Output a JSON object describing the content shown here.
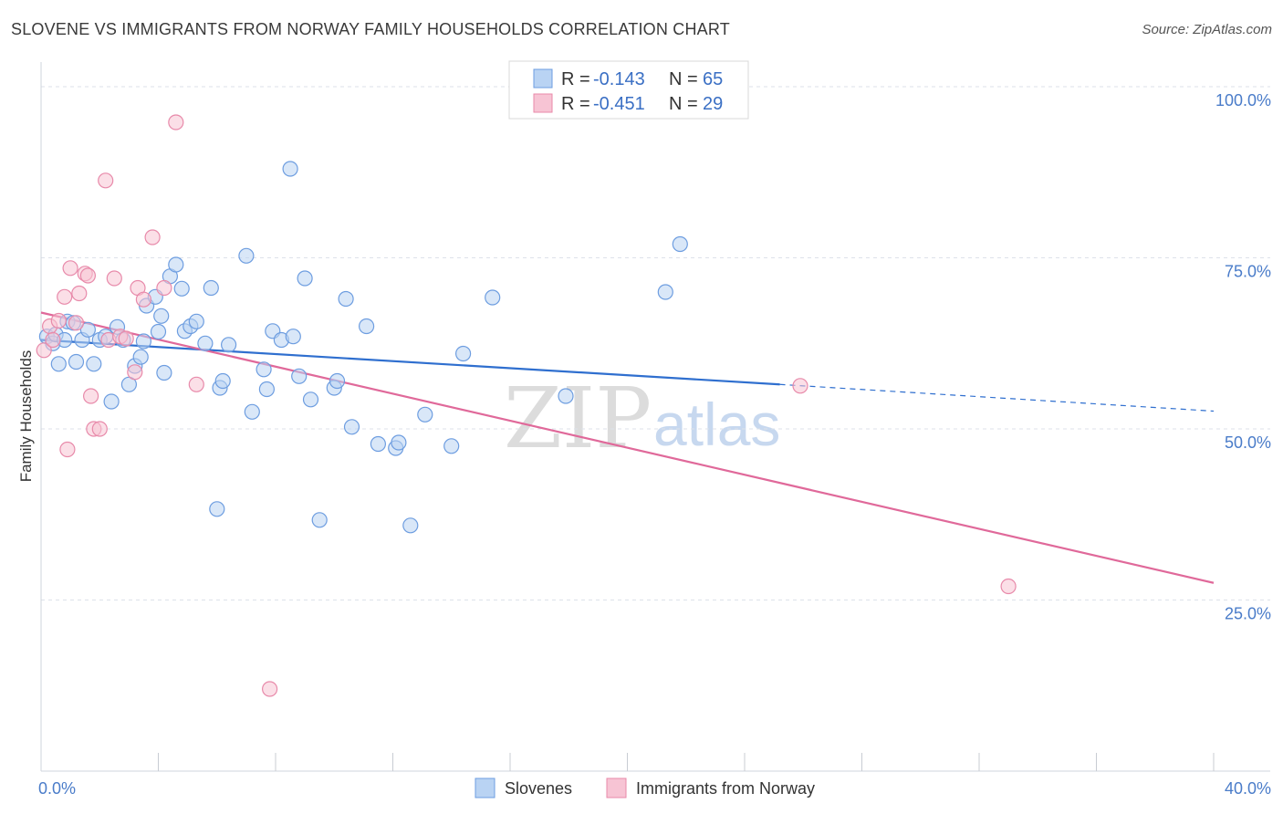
{
  "title": "SLOVENE VS IMMIGRANTS FROM NORWAY FAMILY HOUSEHOLDS CORRELATION CHART",
  "source": "Source: ZipAtlas.com",
  "watermark": {
    "zip": "ZIP",
    "atlas": "atlas"
  },
  "legend_top": {
    "rows": [
      {
        "r_label": "R =",
        "r_value": "-0.143",
        "n_label": "N =",
        "n_value": "65"
      },
      {
        "r_label": "R =",
        "r_value": "-0.451",
        "n_label": "N =",
        "n_value": "29"
      }
    ]
  },
  "legend_bottom": {
    "items": [
      {
        "label": "Slovenes"
      },
      {
        "label": "Immigrants from Norway"
      }
    ]
  },
  "colors": {
    "blue_fill": "#b9d3f3",
    "blue_stroke": "#6d9de0",
    "blue_line": "#2f6fcf",
    "pink_fill": "#f7c4d4",
    "pink_stroke": "#e88aaa",
    "pink_line": "#e0699a",
    "grid": "#dde2ea",
    "tick_label": "#4a7cc9"
  },
  "chart_data": {
    "type": "scatter",
    "xlabel": "",
    "ylabel": "Family Households",
    "xlim": [
      0,
      40
    ],
    "ylim": [
      0,
      104
    ],
    "x_tick_labels": [
      {
        "value": 0,
        "label": "0.0%"
      },
      {
        "value": 40,
        "label": "40.0%"
      }
    ],
    "x_minor_ticks": [
      4,
      8,
      12,
      16,
      20,
      24,
      28,
      32,
      36,
      40
    ],
    "y_ticks": [
      {
        "value": 25,
        "label": "25.0%"
      },
      {
        "value": 50,
        "label": "50.0%"
      },
      {
        "value": 75,
        "label": "75.0%"
      },
      {
        "value": 100,
        "label": "100.0%"
      }
    ],
    "grid": true,
    "legend_position": "top-center",
    "series": [
      {
        "name": "Slovenes",
        "color": "blue",
        "trend": {
          "x_start": 0,
          "y_start": 63.0,
          "x_end": 25.2,
          "y_end": 56.5,
          "dashed_to_x": 40,
          "dashed_to_y": 52.6
        },
        "points": [
          [
            0.2,
            63.5
          ],
          [
            0.4,
            62.5
          ],
          [
            0.5,
            63.8
          ],
          [
            0.6,
            59.5
          ],
          [
            0.8,
            63.0
          ],
          [
            0.9,
            65.7
          ],
          [
            1.1,
            65.5
          ],
          [
            1.2,
            59.8
          ],
          [
            1.4,
            63.0
          ],
          [
            1.6,
            64.5
          ],
          [
            1.8,
            59.5
          ],
          [
            2.0,
            63.0
          ],
          [
            2.2,
            63.5
          ],
          [
            2.4,
            54.0
          ],
          [
            2.6,
            64.9
          ],
          [
            2.8,
            63.0
          ],
          [
            3.0,
            56.5
          ],
          [
            3.2,
            59.2
          ],
          [
            3.4,
            60.5
          ],
          [
            3.5,
            62.8
          ],
          [
            3.6,
            68.0
          ],
          [
            3.9,
            69.3
          ],
          [
            4.0,
            64.2
          ],
          [
            4.1,
            66.5
          ],
          [
            4.2,
            58.2
          ],
          [
            4.4,
            72.3
          ],
          [
            4.6,
            74.0
          ],
          [
            4.8,
            70.5
          ],
          [
            4.9,
            64.3
          ],
          [
            5.1,
            65.0
          ],
          [
            5.3,
            65.7
          ],
          [
            5.6,
            62.5
          ],
          [
            5.8,
            70.6
          ],
          [
            6.0,
            38.3
          ],
          [
            6.1,
            56.0
          ],
          [
            6.2,
            57.0
          ],
          [
            6.4,
            62.3
          ],
          [
            7.0,
            75.3
          ],
          [
            7.2,
            52.5
          ],
          [
            7.6,
            58.7
          ],
          [
            7.7,
            55.8
          ],
          [
            7.9,
            64.3
          ],
          [
            8.2,
            63.0
          ],
          [
            8.5,
            88.0
          ],
          [
            8.6,
            63.5
          ],
          [
            8.8,
            57.7
          ],
          [
            9.0,
            72.0
          ],
          [
            9.2,
            54.3
          ],
          [
            9.5,
            36.7
          ],
          [
            10.0,
            56.0
          ],
          [
            10.1,
            57.0
          ],
          [
            10.4,
            69.0
          ],
          [
            10.6,
            50.3
          ],
          [
            11.1,
            65.0
          ],
          [
            11.5,
            47.8
          ],
          [
            12.1,
            47.2
          ],
          [
            12.2,
            48.0
          ],
          [
            12.6,
            35.9
          ],
          [
            13.1,
            52.1
          ],
          [
            14.0,
            47.5
          ],
          [
            14.4,
            61.0
          ],
          [
            15.4,
            69.2
          ],
          [
            17.9,
            54.8
          ],
          [
            21.3,
            70.0
          ],
          [
            21.8,
            77.0
          ]
        ]
      },
      {
        "name": "Immigrants from Norway",
        "color": "pink",
        "trend": {
          "x_start": 0,
          "y_start": 67.0,
          "x_end": 40,
          "y_end": 27.5
        },
        "points": [
          [
            0.1,
            61.5
          ],
          [
            0.3,
            65.0
          ],
          [
            0.4,
            63.0
          ],
          [
            0.6,
            65.8
          ],
          [
            0.8,
            69.3
          ],
          [
            0.9,
            47.0
          ],
          [
            1.0,
            73.5
          ],
          [
            1.2,
            65.5
          ],
          [
            1.3,
            69.8
          ],
          [
            1.5,
            72.7
          ],
          [
            1.6,
            72.4
          ],
          [
            1.7,
            54.8
          ],
          [
            1.8,
            50.0
          ],
          [
            2.0,
            50.0
          ],
          [
            2.2,
            86.3
          ],
          [
            2.3,
            63.0
          ],
          [
            2.5,
            72.0
          ],
          [
            2.7,
            63.5
          ],
          [
            2.9,
            63.2
          ],
          [
            3.2,
            58.3
          ],
          [
            3.3,
            70.6
          ],
          [
            3.5,
            68.9
          ],
          [
            3.8,
            78.0
          ],
          [
            4.2,
            70.6
          ],
          [
            4.6,
            94.8
          ],
          [
            5.3,
            56.5
          ],
          [
            7.8,
            12.0
          ],
          [
            25.9,
            56.3
          ],
          [
            33.0,
            27.0
          ]
        ]
      }
    ]
  }
}
